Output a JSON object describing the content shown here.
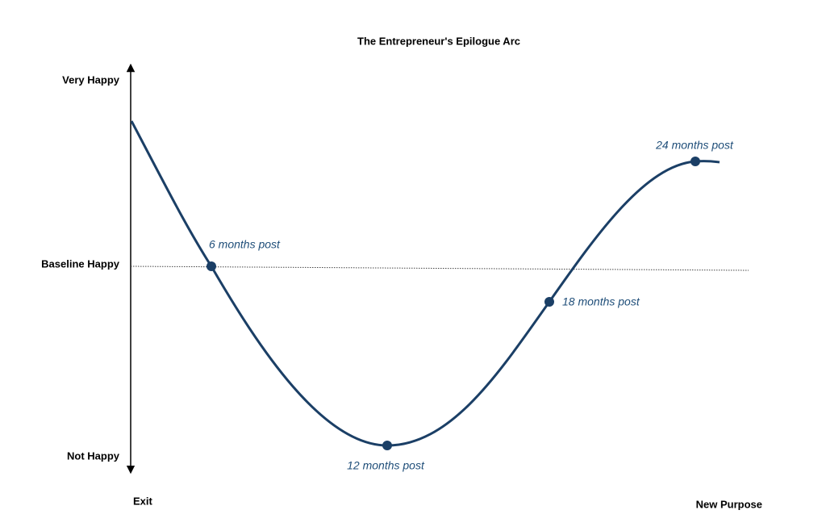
{
  "title": "The Entrepreneur's Epilogue Arc",
  "y_labels": [
    "Very Happy",
    "Baseline Happy",
    "Not Happy"
  ],
  "x_labels": [
    "Exit",
    "New Purpose"
  ],
  "points": [
    {
      "label": "6 months post"
    },
    {
      "label": "12 months post"
    },
    {
      "label": "18 months post"
    },
    {
      "label": "24 months post"
    }
  ]
}
